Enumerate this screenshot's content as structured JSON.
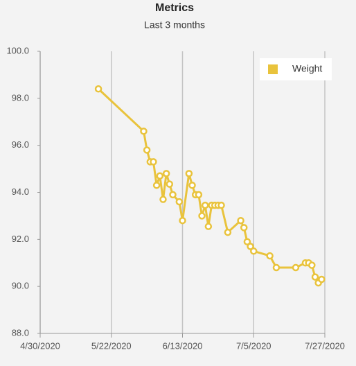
{
  "chart_data": {
    "type": "line",
    "title": "Metrics",
    "subtitle": "Last 3 months",
    "x": [
      "5/18/2020",
      "6/1/2020",
      "6/2/2020",
      "6/3/2020",
      "6/4/2020",
      "6/5/2020",
      "6/6/2020",
      "6/7/2020",
      "6/8/2020",
      "6/9/2020",
      "6/10/2020",
      "6/12/2020",
      "6/13/2020",
      "6/15/2020",
      "6/16/2020",
      "6/17/2020",
      "6/18/2020",
      "6/19/2020",
      "6/20/2020",
      "6/21/2020",
      "6/22/2020",
      "6/23/2020",
      "6/24/2020",
      "6/25/2020",
      "6/27/2020",
      "7/1/2020",
      "7/2/2020",
      "7/3/2020",
      "7/4/2020",
      "7/5/2020",
      "7/10/2020",
      "7/12/2020",
      "7/18/2020",
      "7/21/2020",
      "7/22/2020",
      "7/23/2020",
      "7/24/2020",
      "7/25/2020",
      "7/26/2020"
    ],
    "series": [
      {
        "name": "Weight",
        "color": "#e9c33c",
        "values": [
          98.4,
          96.6,
          95.8,
          95.3,
          95.3,
          94.3,
          94.7,
          93.7,
          94.8,
          94.35,
          93.9,
          93.6,
          92.8,
          94.8,
          94.3,
          93.9,
          93.9,
          93.0,
          93.45,
          92.55,
          93.45,
          93.45,
          93.45,
          93.45,
          92.3,
          92.8,
          92.5,
          91.9,
          91.7,
          91.5,
          91.3,
          90.8,
          90.8,
          91.0,
          91.0,
          90.9,
          90.4,
          90.15,
          90.3
        ]
      }
    ],
    "xlim": [
      "4/30/2020",
      "7/27/2020"
    ],
    "xticks": [
      "4/30/2020",
      "5/22/2020",
      "6/13/2020",
      "7/5/2020",
      "7/27/2020"
    ],
    "ylim": [
      88,
      100
    ],
    "yticks": [
      {
        "value": 88,
        "label": "88.0"
      },
      {
        "value": 90,
        "label": "90.0"
      },
      {
        "value": 92,
        "label": "92.0"
      },
      {
        "value": 94,
        "label": "94.0"
      },
      {
        "value": 96,
        "label": "96.0"
      },
      {
        "value": 98,
        "label": "98.0"
      },
      {
        "value": 100,
        "label": "100.0"
      }
    ],
    "grid": true,
    "legend": "top-right"
  }
}
